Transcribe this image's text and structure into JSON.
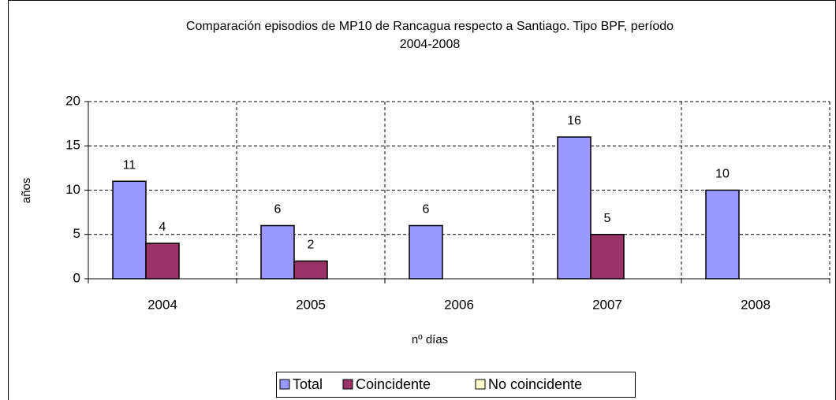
{
  "chart_data": {
    "type": "bar",
    "title": [
      "Comparación episodios de MP10 de Rancagua respecto a Santiago. Tipo BPF, período",
      "2004-2008"
    ],
    "x_label": "nº días",
    "y_label": "años",
    "categories": [
      "2004",
      "2005",
      "2006",
      "2007",
      "2008"
    ],
    "series": [
      {
        "name": "Total",
        "color": "#9999ff",
        "values": [
          11,
          6,
          6,
          16,
          10
        ]
      },
      {
        "name": "Coincidente",
        "color": "#993366",
        "values": [
          4,
          2,
          null,
          5,
          null
        ]
      },
      {
        "name": "No coincidente",
        "color": "#ffffcc",
        "values": [
          null,
          null,
          null,
          null,
          null
        ]
      }
    ],
    "ylim": [
      0,
      20
    ],
    "yticks": [
      0,
      5,
      10,
      15,
      20
    ],
    "grid": true,
    "legend": "bottom"
  }
}
